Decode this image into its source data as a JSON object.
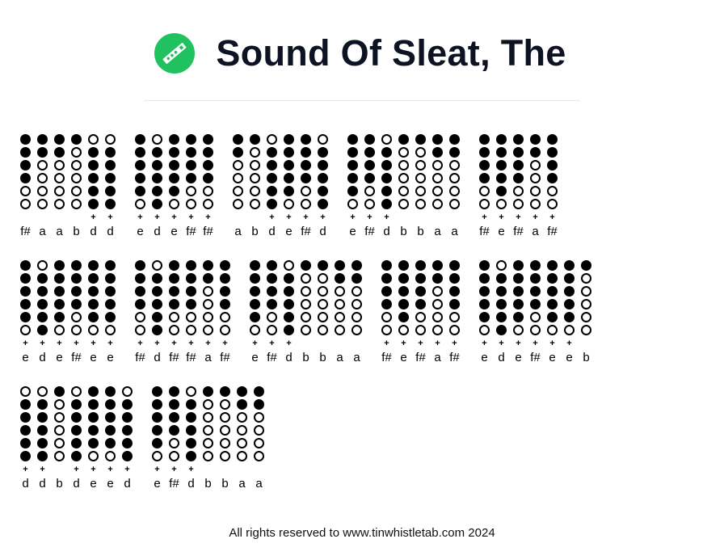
{
  "header": {
    "title": "Sound Of Sleat, The",
    "logo_icon": "tin-whistle-icon",
    "brand_color": "#1fc25f"
  },
  "tab_rows": [
    [
      [
        {
          "n": "f#",
          "f": "111100",
          "p": false
        },
        {
          "n": "a",
          "f": "110000",
          "p": false
        },
        {
          "n": "a",
          "f": "110000",
          "p": false
        },
        {
          "n": "b",
          "f": "100000",
          "p": false
        },
        {
          "n": "d",
          "f": "011111",
          "p": true
        },
        {
          "n": "d",
          "f": "011111",
          "p": true
        }
      ],
      [
        {
          "n": "e",
          "f": "111110",
          "p": true
        },
        {
          "n": "d",
          "f": "011111",
          "p": true
        },
        {
          "n": "e",
          "f": "111110",
          "p": true
        },
        {
          "n": "f#",
          "f": "111100",
          "p": true
        },
        {
          "n": "f#",
          "f": "111100",
          "p": true
        }
      ],
      [
        {
          "n": "a",
          "f": "110000",
          "p": false
        },
        {
          "n": "b",
          "f": "100000",
          "p": false
        },
        {
          "n": "d",
          "f": "011111",
          "p": true
        },
        {
          "n": "e",
          "f": "111110",
          "p": true
        },
        {
          "n": "f#",
          "f": "111100",
          "p": true
        },
        {
          "n": "d",
          "f": "011111",
          "p": true
        }
      ],
      [
        {
          "n": "e",
          "f": "111110",
          "p": true
        },
        {
          "n": "f#",
          "f": "111100",
          "p": true
        },
        {
          "n": "d",
          "f": "011111",
          "p": true
        },
        {
          "n": "b",
          "f": "100000",
          "p": false
        },
        {
          "n": "b",
          "f": "100000",
          "p": false
        },
        {
          "n": "a",
          "f": "110000",
          "p": false
        },
        {
          "n": "a",
          "f": "110000",
          "p": false
        }
      ],
      [
        {
          "n": "f#",
          "f": "111100",
          "p": true
        },
        {
          "n": "e",
          "f": "111110",
          "p": true
        },
        {
          "n": "f#",
          "f": "111100",
          "p": true
        },
        {
          "n": "a",
          "f": "110000",
          "p": true
        },
        {
          "n": "f#",
          "f": "111100",
          "p": true
        }
      ]
    ],
    [
      [
        {
          "n": "e",
          "f": "111110",
          "p": true
        },
        {
          "n": "d",
          "f": "011111",
          "p": true
        },
        {
          "n": "e",
          "f": "111110",
          "p": true
        },
        {
          "n": "f#",
          "f": "111100",
          "p": true
        },
        {
          "n": "e",
          "f": "111110",
          "p": true
        },
        {
          "n": "e",
          "f": "111110",
          "p": true
        }
      ],
      [
        {
          "n": "f#",
          "f": "111100",
          "p": true
        },
        {
          "n": "d",
          "f": "011111",
          "p": true
        },
        {
          "n": "f#",
          "f": "111100",
          "p": true
        },
        {
          "n": "f#",
          "f": "111100",
          "p": true
        },
        {
          "n": "a",
          "f": "110000",
          "p": true
        },
        {
          "n": "f#",
          "f": "111100",
          "p": true
        }
      ],
      [
        {
          "n": "e",
          "f": "111110",
          "p": true
        },
        {
          "n": "f#",
          "f": "111100",
          "p": true
        },
        {
          "n": "d",
          "f": "011111",
          "p": true
        },
        {
          "n": "b",
          "f": "100000",
          "p": false
        },
        {
          "n": "b",
          "f": "100000",
          "p": false
        },
        {
          "n": "a",
          "f": "110000",
          "p": false
        },
        {
          "n": "a",
          "f": "110000",
          "p": false
        }
      ],
      [
        {
          "n": "f#",
          "f": "111100",
          "p": true
        },
        {
          "n": "e",
          "f": "111110",
          "p": true
        },
        {
          "n": "f#",
          "f": "111100",
          "p": true
        },
        {
          "n": "a",
          "f": "110000",
          "p": true
        },
        {
          "n": "f#",
          "f": "111100",
          "p": true
        }
      ],
      [
        {
          "n": "e",
          "f": "111110",
          "p": true
        },
        {
          "n": "d",
          "f": "011111",
          "p": true
        },
        {
          "n": "e",
          "f": "111110",
          "p": true
        },
        {
          "n": "f#",
          "f": "111100",
          "p": true
        },
        {
          "n": "e",
          "f": "111110",
          "p": true
        },
        {
          "n": "e",
          "f": "111110",
          "p": true
        },
        {
          "n": "b",
          "f": "100000",
          "p": false
        }
      ]
    ],
    [
      [
        {
          "n": "d",
          "f": "011111",
          "p": true
        },
        {
          "n": "d",
          "f": "011111",
          "p": true
        },
        {
          "n": "b",
          "f": "100000",
          "p": false
        },
        {
          "n": "d",
          "f": "011111",
          "p": true
        },
        {
          "n": "e",
          "f": "111110",
          "p": true
        },
        {
          "n": "e",
          "f": "111110",
          "p": true
        },
        {
          "n": "d",
          "f": "011111",
          "p": true
        }
      ],
      [
        {
          "n": "e",
          "f": "111110",
          "p": true
        },
        {
          "n": "f#",
          "f": "111100",
          "p": true
        },
        {
          "n": "d",
          "f": "011111",
          "p": true
        },
        {
          "n": "b",
          "f": "100000",
          "p": false
        },
        {
          "n": "b",
          "f": "100000",
          "p": false
        },
        {
          "n": "a",
          "f": "110000",
          "p": false
        },
        {
          "n": "a",
          "f": "110000",
          "p": false
        }
      ]
    ]
  ],
  "plus_symbol": "+",
  "footer": {
    "text": "All rights reserved to www.tinwhistletab.com 2024"
  }
}
